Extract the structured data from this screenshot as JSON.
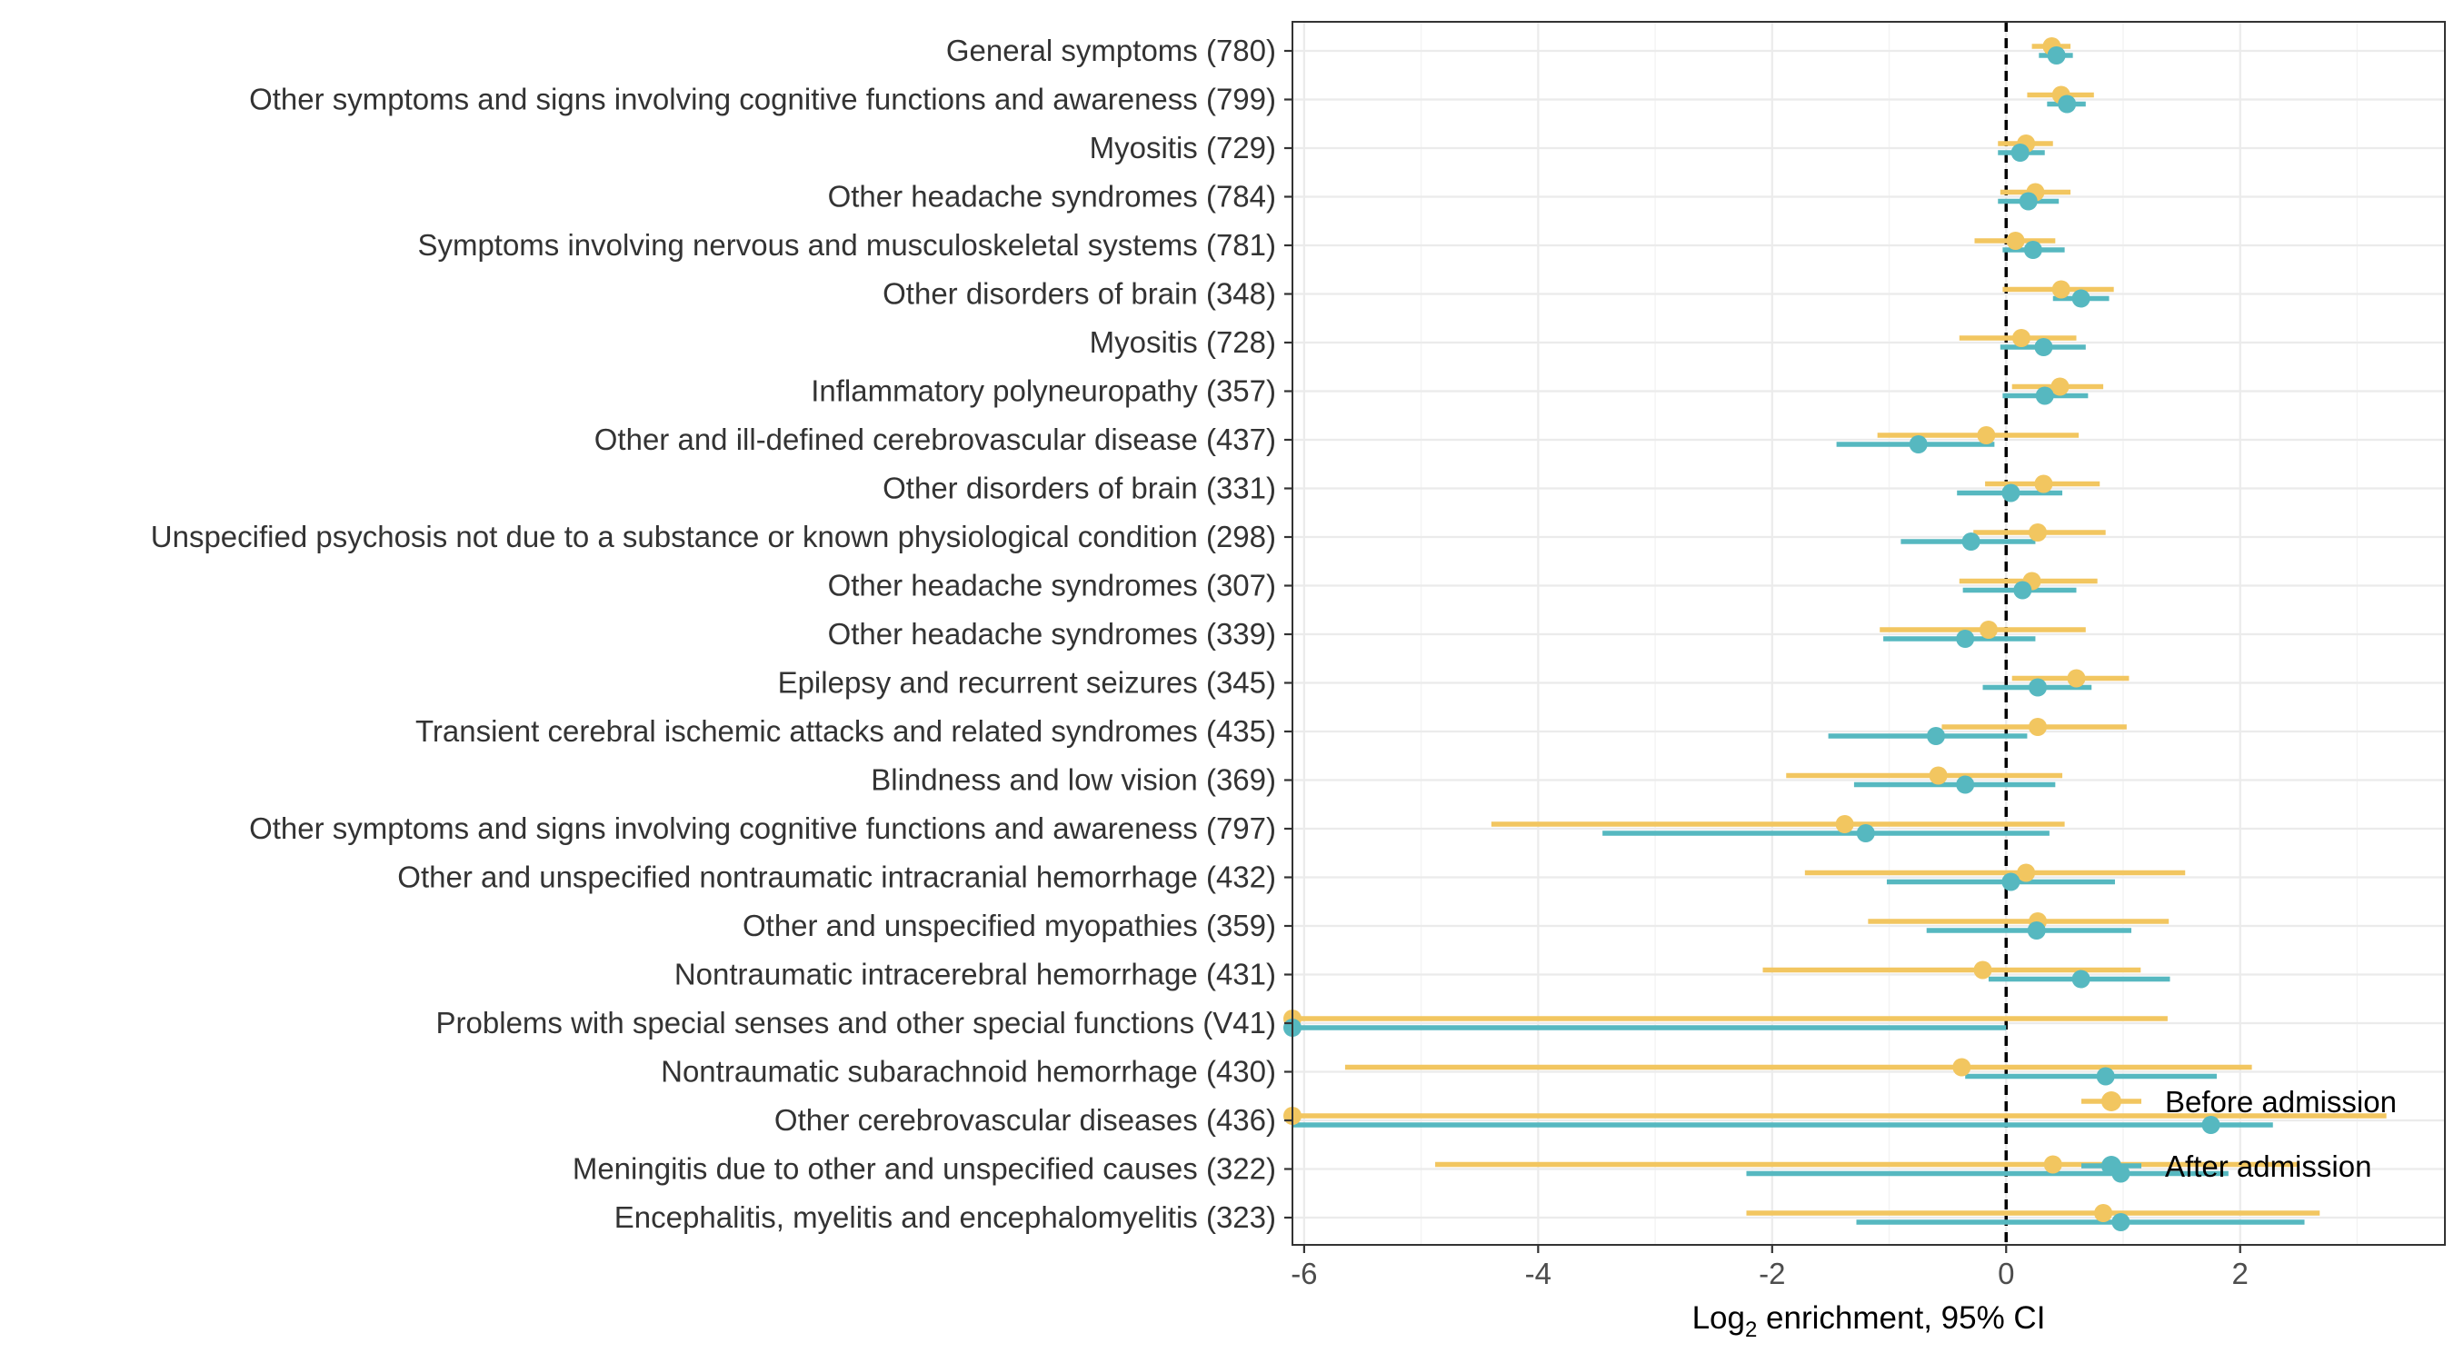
{
  "chart_data": {
    "type": "forest",
    "xlabel": {
      "main": "Log",
      "sub": "2",
      "rest": " enrichment, 95% CI"
    },
    "xlim": [
      -6.1,
      3.75
    ],
    "xticks": [
      -6,
      -4,
      -2,
      0,
      2
    ],
    "xtick_labels": [
      "-6",
      "-4",
      "-2",
      "0",
      "2"
    ],
    "reference_line": 0,
    "grid": true,
    "legend_position": "bottom-right",
    "series": [
      {
        "name": "Before admission",
        "color": "#F2C660"
      },
      {
        "name": "After admission",
        "color": "#56B8C0"
      }
    ],
    "categories": [
      "General symptoms (780)",
      "Other symptoms and signs involving cognitive functions and awareness (799)",
      "Myositis (729)",
      "Other headache syndromes (784)",
      "Symptoms involving nervous and musculoskeletal systems (781)",
      "Other disorders of brain (348)",
      "Myositis (728)",
      "Inflammatory polyneuropathy (357)",
      "Other and ill-defined cerebrovascular disease (437)",
      "Other disorders of brain (331)",
      "Unspecified psychosis not due to a substance or known physiological condition (298)",
      "Other headache syndromes (307)",
      "Other headache syndromes (339)",
      "Epilepsy and recurrent seizures (345)",
      "Transient cerebral ischemic attacks and related syndromes (435)",
      "Blindness and low vision (369)",
      "Other symptoms and signs involving cognitive functions and awareness (797)",
      "Other and unspecified nontraumatic intracranial hemorrhage (432)",
      "Other and unspecified myopathies (359)",
      "Nontraumatic intracerebral hemorrhage (431)",
      "Problems with special senses and other special functions (V41)",
      "Nontraumatic subarachnoid hemorrhage (430)",
      "Other cerebrovascular diseases (436)",
      "Meningitis due to other and unspecified causes (322)",
      "Encephalitis, myelitis and encephalomyelitis (323)"
    ],
    "before": [
      {
        "est": 0.39,
        "lo": 0.22,
        "hi": 0.55
      },
      {
        "est": 0.47,
        "lo": 0.18,
        "hi": 0.75
      },
      {
        "est": 0.17,
        "lo": -0.07,
        "hi": 0.4
      },
      {
        "est": 0.25,
        "lo": -0.05,
        "hi": 0.55
      },
      {
        "est": 0.08,
        "lo": -0.27,
        "hi": 0.42
      },
      {
        "est": 0.47,
        "lo": -0.03,
        "hi": 0.92
      },
      {
        "est": 0.13,
        "lo": -0.4,
        "hi": 0.6
      },
      {
        "est": 0.46,
        "lo": 0.05,
        "hi": 0.83
      },
      {
        "est": -0.17,
        "lo": -1.1,
        "hi": 0.62
      },
      {
        "est": 0.32,
        "lo": -0.18,
        "hi": 0.8
      },
      {
        "est": 0.27,
        "lo": -0.28,
        "hi": 0.85
      },
      {
        "est": 0.22,
        "lo": -0.4,
        "hi": 0.78
      },
      {
        "est": -0.15,
        "lo": -1.08,
        "hi": 0.68
      },
      {
        "est": 0.6,
        "lo": 0.05,
        "hi": 1.05
      },
      {
        "est": 0.27,
        "lo": -0.55,
        "hi": 1.03
      },
      {
        "est": -0.58,
        "lo": -1.88,
        "hi": 0.48
      },
      {
        "est": -1.38,
        "lo": -4.4,
        "hi": 0.5
      },
      {
        "est": 0.17,
        "lo": -1.72,
        "hi": 1.53
      },
      {
        "est": 0.27,
        "lo": -1.18,
        "hi": 1.39
      },
      {
        "est": -0.2,
        "lo": -2.08,
        "hi": 1.15
      },
      {
        "est": -6.1,
        "lo": -6.1,
        "hi": 1.38
      },
      {
        "est": -0.38,
        "lo": -5.65,
        "hi": 2.1
      },
      {
        "est": -6.1,
        "lo": -6.1,
        "hi": 3.25
      },
      {
        "est": 0.4,
        "lo": -4.88,
        "hi": 2.5
      },
      {
        "est": 0.83,
        "lo": -2.22,
        "hi": 2.68
      }
    ],
    "after": [
      {
        "est": 0.43,
        "lo": 0.28,
        "hi": 0.57
      },
      {
        "est": 0.52,
        "lo": 0.35,
        "hi": 0.68
      },
      {
        "est": 0.12,
        "lo": -0.07,
        "hi": 0.33
      },
      {
        "est": 0.19,
        "lo": -0.07,
        "hi": 0.45
      },
      {
        "est": 0.23,
        "lo": -0.03,
        "hi": 0.5
      },
      {
        "est": 0.64,
        "lo": 0.4,
        "hi": 0.88
      },
      {
        "est": 0.32,
        "lo": -0.05,
        "hi": 0.68
      },
      {
        "est": 0.33,
        "lo": -0.03,
        "hi": 0.7
      },
      {
        "est": -0.75,
        "lo": -1.45,
        "hi": -0.1
      },
      {
        "est": 0.04,
        "lo": -0.42,
        "hi": 0.48
      },
      {
        "est": -0.3,
        "lo": -0.9,
        "hi": 0.25
      },
      {
        "est": 0.14,
        "lo": -0.37,
        "hi": 0.6
      },
      {
        "est": -0.35,
        "lo": -1.05,
        "hi": 0.25
      },
      {
        "est": 0.27,
        "lo": -0.2,
        "hi": 0.73
      },
      {
        "est": -0.6,
        "lo": -1.52,
        "hi": 0.18
      },
      {
        "est": -0.35,
        "lo": -1.3,
        "hi": 0.42
      },
      {
        "est": -1.2,
        "lo": -3.45,
        "hi": 0.37
      },
      {
        "est": 0.04,
        "lo": -1.02,
        "hi": 0.93
      },
      {
        "est": 0.26,
        "lo": -0.68,
        "hi": 1.07
      },
      {
        "est": 0.64,
        "lo": -0.15,
        "hi": 1.4
      },
      {
        "est": -6.1,
        "lo": -6.1,
        "hi": 0.0
      },
      {
        "est": 0.85,
        "lo": -0.35,
        "hi": 1.8
      },
      {
        "est": 1.75,
        "lo": -6.1,
        "hi": 2.28
      },
      {
        "est": 0.98,
        "lo": -2.22,
        "hi": 1.9
      },
      {
        "est": 0.98,
        "lo": -1.28,
        "hi": 2.55
      }
    ]
  }
}
